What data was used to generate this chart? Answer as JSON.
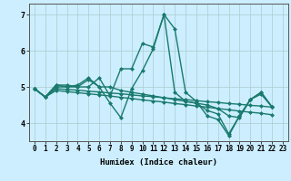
{
  "xlabel": "Humidex (Indice chaleur)",
  "background_color": "#cceeff",
  "grid_color": "#aacccc",
  "line_color": "#1a7a6e",
  "xlim": [
    -0.5,
    23.5
  ],
  "ylim": [
    3.5,
    7.3
  ],
  "yticks": [
    4,
    5,
    6,
    7
  ],
  "xticks": [
    0,
    1,
    2,
    3,
    4,
    5,
    6,
    7,
    8,
    9,
    10,
    11,
    12,
    13,
    14,
    15,
    16,
    17,
    18,
    19,
    20,
    21,
    22,
    23
  ],
  "line1_x": [
    0,
    1,
    2,
    3,
    4,
    5,
    6,
    7,
    8,
    9,
    10,
    11,
    12,
    13,
    14,
    15,
    16,
    17,
    18,
    19,
    20,
    21,
    22
  ],
  "line1_y": [
    4.95,
    4.72,
    5.05,
    5.05,
    5.0,
    5.0,
    5.25,
    4.75,
    5.5,
    5.5,
    6.2,
    6.1,
    7.0,
    6.6,
    4.85,
    4.6,
    4.2,
    4.1,
    3.65,
    4.2,
    4.65,
    4.85,
    4.45
  ],
  "line2_x": [
    0,
    1,
    2,
    3,
    4,
    5,
    6,
    7,
    8,
    9,
    10,
    11,
    12,
    13,
    14,
    15,
    16,
    17,
    18,
    19,
    20,
    21,
    22
  ],
  "line2_y": [
    4.95,
    4.72,
    5.05,
    5.0,
    5.05,
    5.25,
    5.0,
    4.55,
    4.15,
    4.95,
    5.45,
    6.05,
    7.0,
    4.85,
    4.6,
    4.55,
    4.35,
    4.25,
    3.7,
    4.2,
    4.65,
    4.85,
    4.45
  ],
  "line3_x": [
    0,
    1,
    2,
    3,
    4,
    5,
    6,
    7,
    8,
    9,
    10,
    11,
    12,
    13,
    14,
    15,
    16,
    17,
    18,
    19,
    20,
    21,
    22
  ],
  "line3_y": [
    4.95,
    4.72,
    5.0,
    5.0,
    5.0,
    5.2,
    5.0,
    5.0,
    4.9,
    4.85,
    4.8,
    4.75,
    4.7,
    4.65,
    4.6,
    4.55,
    4.5,
    4.4,
    4.2,
    4.15,
    4.65,
    4.8,
    4.45
  ],
  "line4_x": [
    0,
    1,
    2,
    3,
    4,
    5,
    6,
    7,
    8,
    9,
    10,
    11,
    12,
    13,
    14,
    15,
    16,
    17,
    18,
    19,
    20,
    21,
    22
  ],
  "line4_y": [
    4.95,
    4.72,
    4.95,
    4.93,
    4.91,
    4.88,
    4.86,
    4.83,
    4.81,
    4.78,
    4.75,
    4.73,
    4.7,
    4.67,
    4.65,
    4.62,
    4.59,
    4.57,
    4.54,
    4.52,
    4.49,
    4.47,
    4.44
  ],
  "line5_x": [
    0,
    1,
    2,
    3,
    4,
    5,
    6,
    7,
    8,
    9,
    10,
    11,
    12,
    13,
    14,
    15,
    16,
    17,
    18,
    19,
    20,
    21,
    22
  ],
  "line5_y": [
    4.95,
    4.72,
    4.9,
    4.87,
    4.84,
    4.81,
    4.78,
    4.75,
    4.71,
    4.68,
    4.64,
    4.61,
    4.58,
    4.54,
    4.51,
    4.47,
    4.44,
    4.4,
    4.37,
    4.33,
    4.3,
    4.27,
    4.23
  ],
  "marker": "D",
  "marker_size": 2.5,
  "line_width": 1.0
}
